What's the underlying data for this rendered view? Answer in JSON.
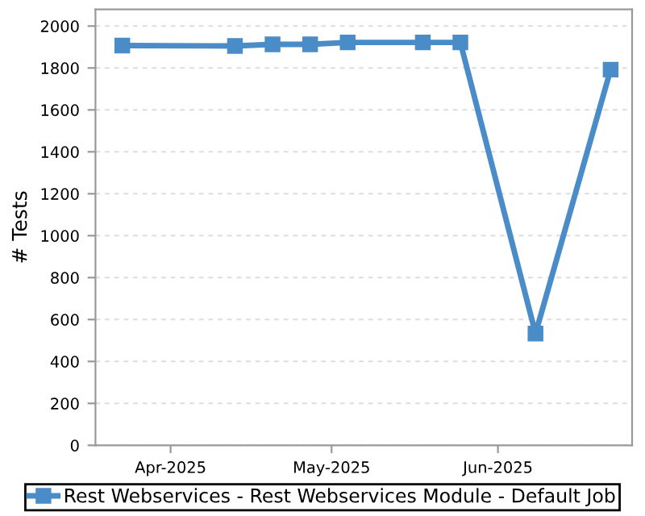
{
  "chart_data": {
    "type": "line",
    "ylabel": "# Tests",
    "x": [
      "2025-03-23",
      "2025-04-13",
      "2025-04-20",
      "2025-04-27",
      "2025-05-04",
      "2025-05-18",
      "2025-05-25",
      "2025-06-08",
      "2025-06-22"
    ],
    "series": [
      {
        "name": "Rest Webservices - Rest Webservices Module - Default Job",
        "color": "#4a8cc8",
        "values": [
          1907,
          1905,
          1913,
          1913,
          1922,
          1922,
          1922,
          533,
          1792
        ]
      }
    ],
    "xlim": [
      "2025-03-18",
      "2025-06-26"
    ],
    "xticks": [
      {
        "value": "2025-04-01",
        "label": "Apr-2025"
      },
      {
        "value": "2025-05-01",
        "label": "May-2025"
      },
      {
        "value": "2025-06-01",
        "label": "Jun-2025"
      }
    ],
    "ylim": [
      0,
      2080
    ],
    "yticks": [
      0,
      200,
      400,
      600,
      800,
      1000,
      1200,
      1400,
      1600,
      1800,
      2000
    ],
    "grid": "y",
    "legend": "bottom",
    "marker": "square",
    "line_style": "solid"
  }
}
